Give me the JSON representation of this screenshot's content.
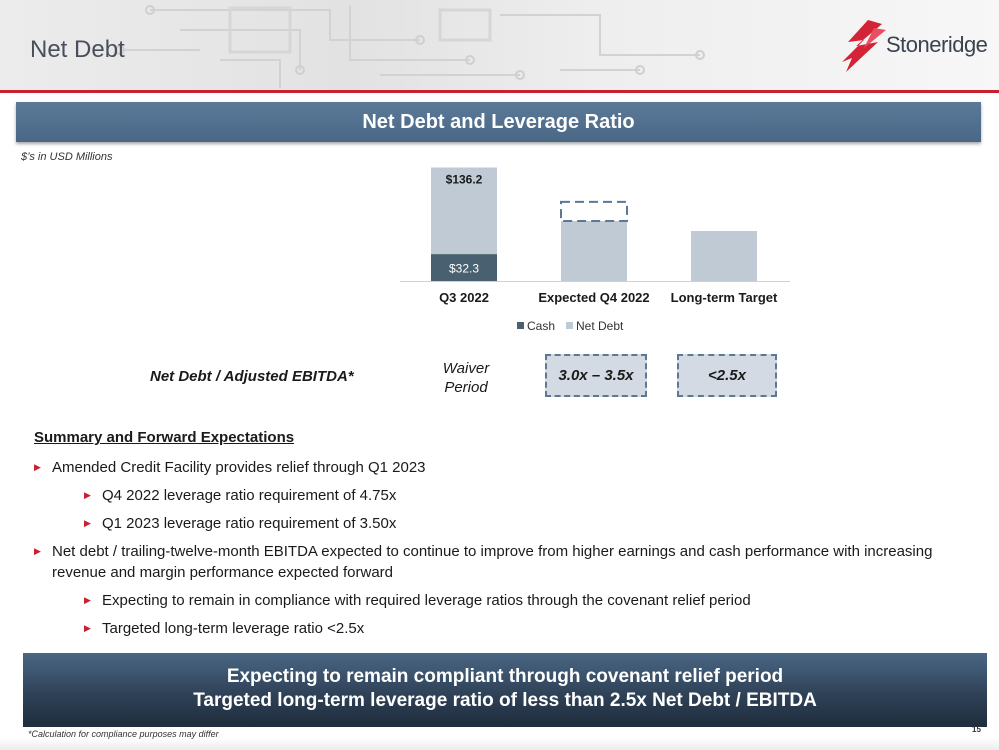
{
  "header": {
    "title": "Net Debt",
    "logo_text": "Stoneridge",
    "accent_color": "#c8202f"
  },
  "section": {
    "title": "Net Debt and Leverage Ratio",
    "units_note": "$’s in USD Millions"
  },
  "chart_data": {
    "type": "bar",
    "stacked": true,
    "categories": [
      "Q3 2022",
      "Expected Q4 2022",
      "Long-term Target"
    ],
    "series": [
      {
        "name": "Cash",
        "color": "#48606f",
        "values": [
          32.3,
          0,
          0
        ]
      },
      {
        "name": "Net Debt",
        "color": "#bfcad4",
        "values": [
          103.9,
          72.0,
          60.0
        ]
      }
    ],
    "expected_range": {
      "category": "Expected Q4 2022",
      "low": 72.0,
      "high": 95.0,
      "style": "dashed outline"
    },
    "data_labels": {
      "cash_q3": "$32.3",
      "total_q3": "$136.2"
    },
    "ylim": [
      0,
      150
    ],
    "legend": {
      "position": "bottom",
      "items": [
        "Cash",
        "Net Debt"
      ]
    },
    "grid": false
  },
  "ratio_row": {
    "label": "Net Debt / Adjusted EBITDA*",
    "waiver_line1": "Waiver",
    "waiver_line2": "Period",
    "q4_value": "3.0x – 3.5x",
    "target_value": "<2.5x"
  },
  "summary": {
    "title": "Summary and Forward Expectations",
    "bullets": [
      "Amended Credit Facility provides relief through Q1 2023",
      "Q4 2022 leverage ratio requirement of 4.75x",
      "Q1 2023 leverage ratio requirement of 3.50x",
      "Net debt / trailing-twelve-month EBITDA expected to continue to improve from higher earnings and cash performance with increasing revenue and margin performance expected forward",
      "Expecting to remain in compliance with required leverage ratios through the covenant relief period",
      "Targeted long-term leverage ratio <2.5x"
    ]
  },
  "banner": {
    "line1": "Expecting to remain compliant through covenant relief period",
    "line2": "Targeted long-term leverage ratio of less than 2.5x Net Debt / EBITDA"
  },
  "footer": {
    "footnote": "*Calculation for compliance purposes may differ",
    "page_number": "15"
  }
}
